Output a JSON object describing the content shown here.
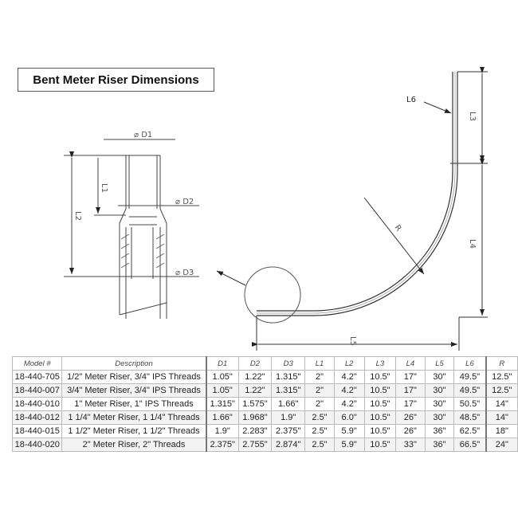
{
  "title": "Bent Meter Riser Dimensions",
  "drawing_labels": {
    "d1": "D1",
    "d2": "D2",
    "d3": "D3",
    "l1": "L1",
    "l2": "L2",
    "l3": "L3",
    "l4": "L4",
    "l5": "L5",
    "l6": "L6",
    "r": "R"
  },
  "table": {
    "headers": [
      "Model #",
      "Description",
      "D1",
      "D2",
      "D3",
      "L1",
      "L2",
      "L3",
      "L4",
      "L5",
      "L6",
      "R"
    ],
    "rows": [
      [
        "18-440-705",
        "1/2\" Meter Riser, 3/4\" IPS Threads",
        "1.05\"",
        "1.22\"",
        "1.315\"",
        "2\"",
        "4.2\"",
        "10.5\"",
        "17\"",
        "30\"",
        "49.5\"",
        "12.5\""
      ],
      [
        "18-440-007",
        "3/4\" Meter Riser, 3/4\" IPS Threads",
        "1.05\"",
        "1.22\"",
        "1.315\"",
        "2\"",
        "4.2\"",
        "10.5\"",
        "17\"",
        "30\"",
        "49.5\"",
        "12.5\""
      ],
      [
        "18-440-010",
        "1\" Meter Riser, 1\" IPS Threads",
        "1.315\"",
        "1.575\"",
        "1.66\"",
        "2\"",
        "4.2\"",
        "10.5\"",
        "17\"",
        "30\"",
        "50.5\"",
        "14\""
      ],
      [
        "18-440-012",
        "1 1/4\" Meter Riser, 1 1/4\" Threads",
        "1.66\"",
        "1.968\"",
        "1.9\"",
        "2.5\"",
        "6.0\"",
        "10.5\"",
        "26\"",
        "30\"",
        "48.5\"",
        "14\""
      ],
      [
        "18-440-015",
        "1 1/2\" Meter Riser, 1 1/2\" Threads",
        "1.9\"",
        "2.283\"",
        "2.375\"",
        "2.5\"",
        "5.9\"",
        "10.5\"",
        "26\"",
        "36\"",
        "62.5\"",
        "18\""
      ],
      [
        "18-440-020",
        "2\" Meter Riser, 2\" Threads",
        "2.375\"",
        "2.755\"",
        "2.874\"",
        "2.5\"",
        "5.9\"",
        "10.5\"",
        "33\"",
        "36\"",
        "66.5\"",
        "24\""
      ]
    ]
  }
}
